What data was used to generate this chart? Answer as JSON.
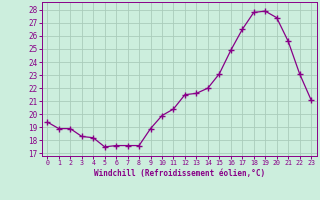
{
  "x": [
    0,
    1,
    2,
    3,
    4,
    5,
    6,
    7,
    8,
    9,
    10,
    11,
    12,
    13,
    14,
    15,
    16,
    17,
    18,
    19,
    20,
    21,
    22,
    23
  ],
  "y": [
    19.4,
    18.9,
    18.9,
    18.3,
    18.2,
    17.5,
    17.6,
    17.6,
    17.6,
    18.9,
    19.9,
    20.4,
    21.5,
    21.6,
    22.0,
    23.1,
    24.9,
    26.5,
    27.8,
    27.9,
    27.4,
    25.6,
    23.1,
    21.1
  ],
  "line_color": "#880088",
  "marker": "+",
  "marker_size": 4,
  "bg_color": "#cceedd",
  "grid_color": "#aaccbb",
  "xlabel": "Windchill (Refroidissement éolien,°C)",
  "ylabel_ticks": [
    17,
    18,
    19,
    20,
    21,
    22,
    23,
    24,
    25,
    26,
    27,
    28
  ],
  "ylim": [
    16.8,
    28.6
  ],
  "xlim": [
    -0.5,
    23.5
  ],
  "xlabel_fontsize": 5.5,
  "xtick_fontsize": 4.8,
  "ytick_fontsize": 5.5
}
